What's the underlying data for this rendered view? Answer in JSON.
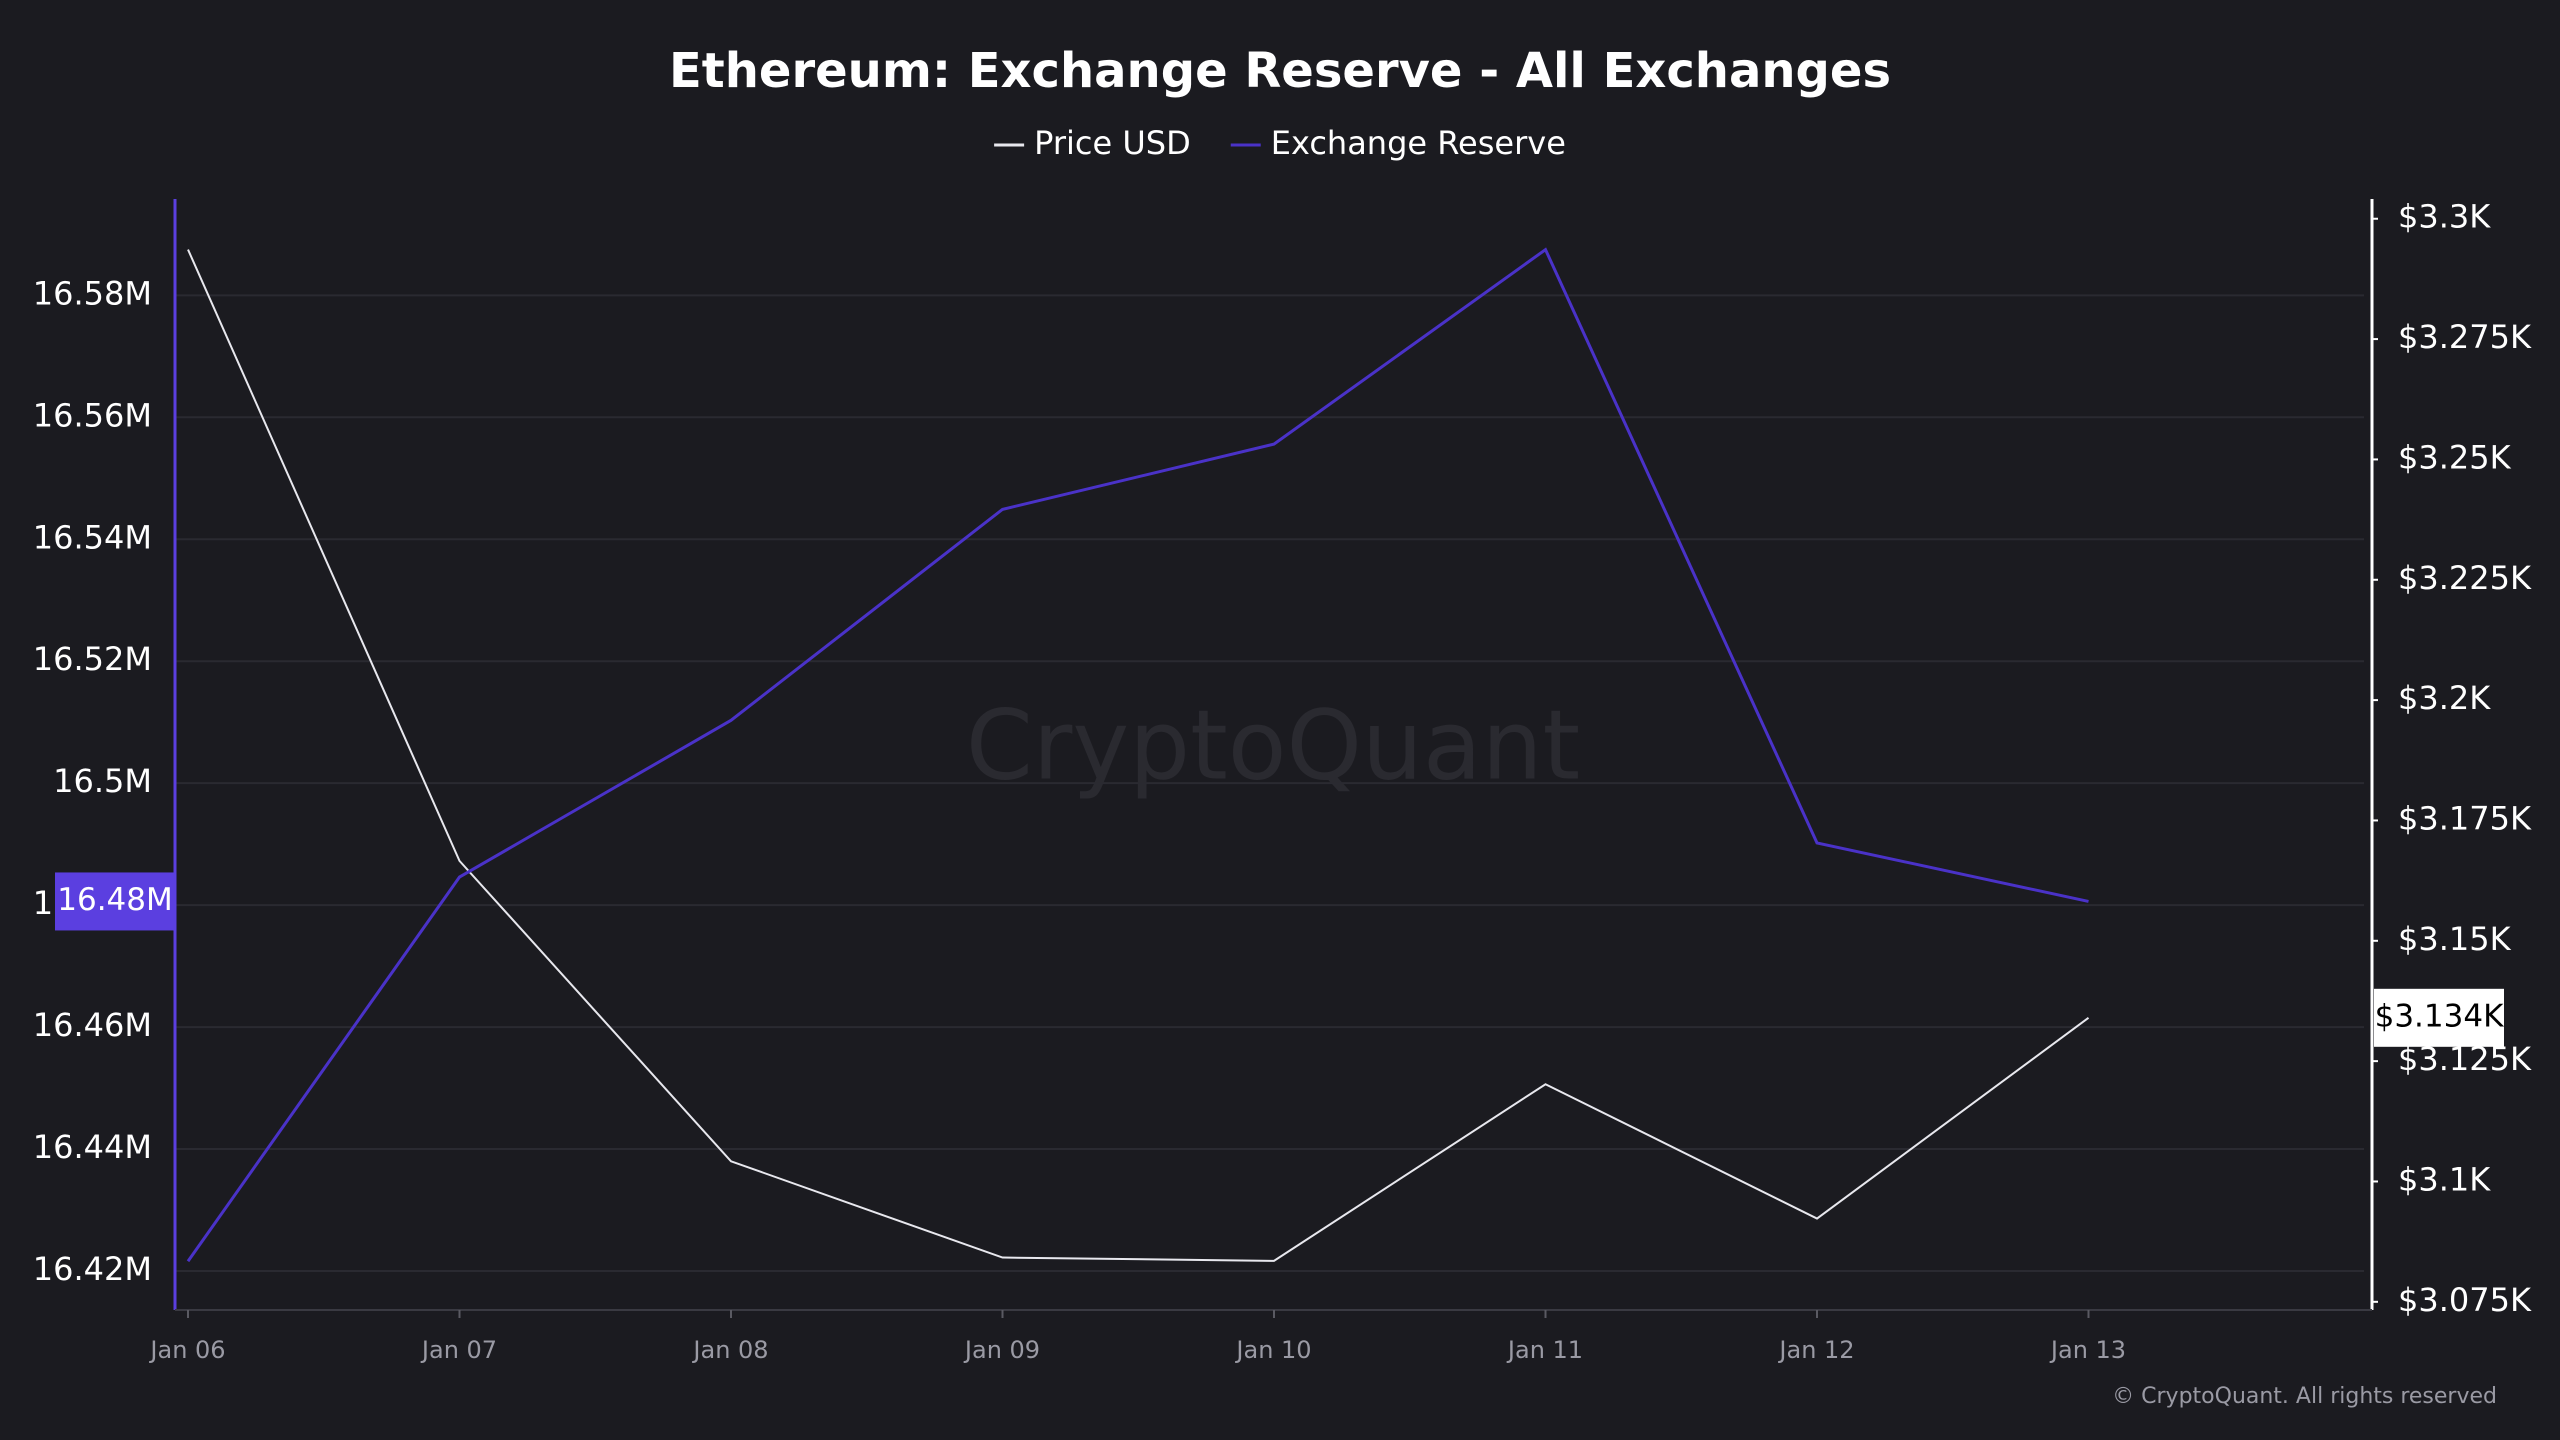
{
  "chart_data": {
    "type": "line",
    "title": "Ethereum: Exchange Reserve - All Exchanges",
    "watermark": "CryptoQuant",
    "footer": "© CryptoQuant. All rights reserved",
    "categories": [
      "Jan 06",
      "Jan 07",
      "Jan 08",
      "Jan 09",
      "Jan 10",
      "Jan 11",
      "Jan 12",
      "Jan 13"
    ],
    "series": [
      {
        "name": "Price USD",
        "color": "#e8e8ee",
        "axis": "y2",
        "values": [
          3293.6,
          3166.6,
          3104.2,
          3084.2,
          3083.5,
          3120.2,
          3092.3,
          3134
        ],
        "value_labels": [
          null,
          null,
          null,
          null,
          null,
          null,
          null,
          "$3.134K"
        ]
      },
      {
        "name": "Exchange Reserve",
        "color": "#4a32c8",
        "axis": "y",
        "values": [
          16421600,
          16484600,
          16510300,
          16544900,
          16555600,
          16587500,
          16490200,
          16480600
        ],
        "value_labels": [
          null,
          null,
          null,
          null,
          null,
          null,
          null,
          "16.48M"
        ]
      }
    ],
    "ylim": [
      16413600,
      16595800
    ],
    "yticks": [
      {
        "value": 16420000,
        "label": "16.42M"
      },
      {
        "value": 16440000,
        "label": "16.44M"
      },
      {
        "value": 16460000,
        "label": "16.46M"
      },
      {
        "value": 16480000,
        "label": "16.48M"
      },
      {
        "value": 16500000,
        "label": "16.5M"
      },
      {
        "value": 16520000,
        "label": "16.52M"
      },
      {
        "value": 16540000,
        "label": "16.54M"
      },
      {
        "value": 16560000,
        "label": "16.56M"
      },
      {
        "value": 16580000,
        "label": "16.58M"
      }
    ],
    "y2lim": [
      3073.3,
      3304.1
    ],
    "y2ticks": [
      {
        "value": 3075,
        "label": "$3.075K"
      },
      {
        "value": 3100,
        "label": "$3.1K"
      },
      {
        "value": 3125,
        "label": "$3.125K"
      },
      {
        "value": 3150,
        "label": "$3.15K"
      },
      {
        "value": 3175,
        "label": "$3.175K"
      },
      {
        "value": 3200,
        "label": "$3.2K"
      },
      {
        "value": 3225,
        "label": "$3.225K"
      },
      {
        "value": 3250,
        "label": "$3.25K"
      },
      {
        "value": 3275,
        "label": "$3.275K"
      },
      {
        "value": 3300,
        "label": "$3.3K"
      }
    ],
    "grid": true
  }
}
